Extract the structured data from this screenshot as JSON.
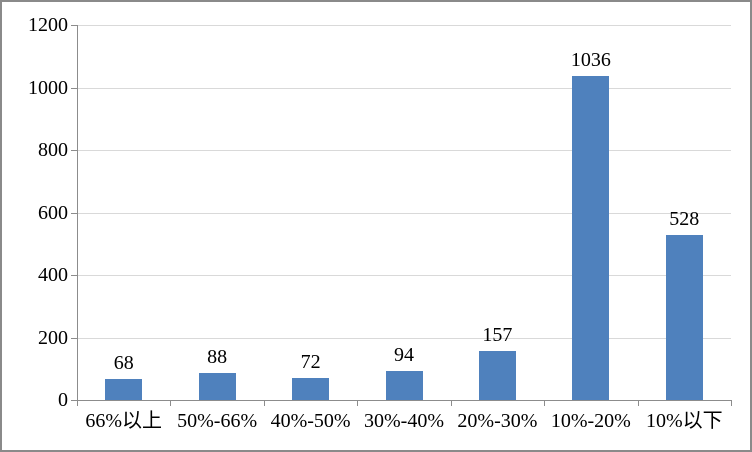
{
  "chart_data": {
    "type": "bar",
    "title": "",
    "xlabel": "",
    "ylabel": "",
    "categories": [
      "66%以上",
      "50%-66%",
      "40%-50%",
      "30%-40%",
      "20%-30%",
      "10%-20%",
      "10%以下"
    ],
    "values": [
      68,
      88,
      72,
      94,
      157,
      1036,
      528
    ],
    "data_labels": [
      "68",
      "88",
      "72",
      "94",
      "157",
      "1036",
      "528"
    ],
    "ylim": [
      0,
      1200
    ],
    "yticks": [
      0,
      200,
      400,
      600,
      800,
      1000,
      1200
    ],
    "grid": true,
    "legend": "none",
    "colors": {
      "bar": "#4f81bd",
      "gridline": "#d9d9d9",
      "axis": "#8c8c8c",
      "border": "#8a8a8a",
      "text": "#000000"
    }
  }
}
